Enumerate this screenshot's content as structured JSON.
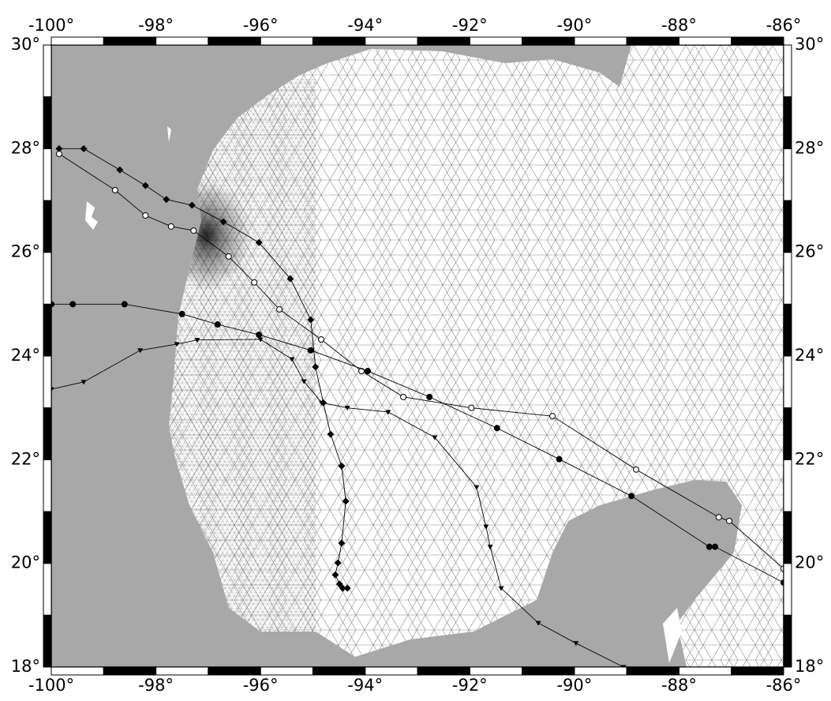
{
  "map": {
    "lonlim": [
      -100,
      -86
    ],
    "latlim": [
      18,
      30
    ],
    "lonticks": [
      {
        "value": -100,
        "label": "-100°"
      },
      {
        "value": -98,
        "label": "-98°"
      },
      {
        "value": -96,
        "label": "-96°"
      },
      {
        "value": -94,
        "label": "-94°"
      },
      {
        "value": -92,
        "label": "-92°"
      },
      {
        "value": -90,
        "label": "-90°"
      },
      {
        "value": -88,
        "label": "-88°"
      },
      {
        "value": -86,
        "label": "-86°"
      }
    ],
    "latticks": [
      {
        "value": 18,
        "label": "18°"
      },
      {
        "value": 20,
        "label": "20°"
      },
      {
        "value": 22,
        "label": "22°"
      },
      {
        "value": 24,
        "label": "24°"
      },
      {
        "value": 26,
        "label": "26°"
      },
      {
        "value": 28,
        "label": "28°"
      },
      {
        "value": 30,
        "label": "30°"
      }
    ],
    "tracks": [
      {
        "marker": "diamond",
        "lon": [
          -99.85,
          -99.38,
          -98.69,
          -98.2,
          -97.8,
          -97.31,
          -96.71,
          -96.03,
          -95.43,
          -95.04,
          -94.95,
          -94.8,
          -94.66,
          -94.45,
          -94.37,
          -94.45,
          -94.52,
          -94.57,
          -94.49,
          -94.43,
          -94.34
        ],
        "lat": [
          28.0,
          28.0,
          27.59,
          27.29,
          27.02,
          26.91,
          26.59,
          26.19,
          25.49,
          24.7,
          23.79,
          23.1,
          22.49,
          21.88,
          21.2,
          20.39,
          20.01,
          19.78,
          19.6,
          19.52,
          19.52
        ]
      },
      {
        "marker": "open-circle",
        "lon": [
          -99.85,
          -98.78,
          -98.2,
          -97.71,
          -97.28,
          -96.61,
          -96.12,
          -95.64,
          -94.84,
          -94.07,
          -93.27,
          -91.97,
          -90.42,
          -88.82,
          -87.24,
          -87.04,
          -86.0
        ],
        "lat": [
          27.9,
          27.2,
          26.71,
          26.5,
          26.42,
          25.92,
          25.42,
          24.9,
          24.32,
          23.71,
          23.21,
          23.0,
          22.84,
          21.81,
          20.89,
          20.82,
          19.9
        ]
      },
      {
        "marker": "filled-circle",
        "lon": [
          -100.0,
          -99.59,
          -98.6,
          -97.5,
          -96.82,
          -96.03,
          -95.04,
          -93.95,
          -92.77,
          -91.48,
          -90.29,
          -88.91,
          -87.42,
          -87.31,
          -86.0
        ],
        "lat": [
          25.0,
          25.0,
          25.0,
          24.81,
          24.61,
          24.41,
          24.11,
          23.71,
          23.21,
          22.61,
          22.01,
          21.3,
          20.32,
          20.32,
          19.63
        ]
      },
      {
        "marker": "triangle",
        "lon": [
          -100.0,
          -99.38,
          -98.3,
          -97.6,
          -97.21,
          -96.0,
          -95.4,
          -95.17,
          -94.83,
          -94.34,
          -93.56,
          -92.67,
          -91.87,
          -91.69,
          -91.61,
          -91.4,
          -90.69,
          -89.97,
          -89.06
        ],
        "lat": [
          23.36,
          23.5,
          24.11,
          24.23,
          24.31,
          24.32,
          23.94,
          23.51,
          23.1,
          23.0,
          22.92,
          22.43,
          21.47,
          20.71,
          20.32,
          19.52,
          18.85,
          18.46,
          18.0
        ]
      }
    ]
  }
}
